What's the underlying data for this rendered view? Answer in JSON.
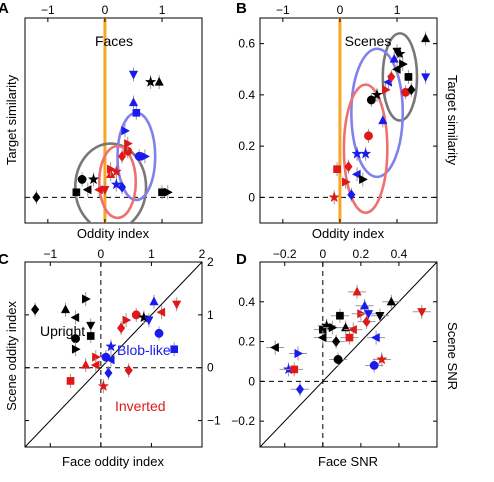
{
  "chart_data": [
    {
      "panel_label": "A",
      "title": "Faces",
      "type": "scatter",
      "xlabel": "Oddity index",
      "ylabel": "Target similarity",
      "x_ticks": [
        "−1",
        "0",
        "1"
      ],
      "xlim": [
        -1.4,
        1.7
      ],
      "ylim": [
        -0.1,
        0.7
      ],
      "vertical_line_x": 0,
      "horizontal_dashed_y": 0,
      "ellipses": [
        {
          "color": "#777777",
          "cx": 0.1,
          "cy": 0.04,
          "rx": 0.62,
          "ry": 0.17
        },
        {
          "color": "#8080ee",
          "cx": 0.55,
          "cy": 0.16,
          "rx": 0.33,
          "ry": 0.17
        },
        {
          "color": "#ee7070",
          "cx": 0.22,
          "cy": 0.06,
          "rx": 0.32,
          "ry": 0.14
        }
      ],
      "points": [
        {
          "x": -1.2,
          "y": 0.0,
          "m": "diamond",
          "c": "black"
        },
        {
          "x": -0.5,
          "y": 0.02,
          "m": "square",
          "c": "black"
        },
        {
          "x": -0.4,
          "y": 0.07,
          "m": "circle",
          "c": "black"
        },
        {
          "x": -0.3,
          "y": 0.03,
          "m": "left",
          "c": "black"
        },
        {
          "x": -0.2,
          "y": 0.07,
          "m": "star",
          "c": "black"
        },
        {
          "x": -0.1,
          "y": 0.03,
          "m": "left",
          "c": "red"
        },
        {
          "x": 0.0,
          "y": 0.03,
          "m": "down",
          "c": "red"
        },
        {
          "x": 0.1,
          "y": 0.09,
          "m": "up",
          "c": "red"
        },
        {
          "x": 0.2,
          "y": 0.05,
          "m": "star",
          "c": "blue"
        },
        {
          "x": 0.3,
          "y": 0.04,
          "m": "diamond",
          "c": "blue"
        },
        {
          "x": 0.1,
          "y": 0.11,
          "m": "right",
          "c": "red"
        },
        {
          "x": 0.2,
          "y": 0.1,
          "m": "star",
          "c": "red"
        },
        {
          "x": 0.4,
          "y": 0.18,
          "m": "circle",
          "c": "red"
        },
        {
          "x": 0.3,
          "y": 0.16,
          "m": "diamond",
          "c": "red"
        },
        {
          "x": 0.6,
          "y": 0.16,
          "m": "circle",
          "c": "blue"
        },
        {
          "x": 0.4,
          "y": 0.21,
          "m": "right",
          "c": "red"
        },
        {
          "x": 0.7,
          "y": 0.16,
          "m": "right",
          "c": "blue"
        },
        {
          "x": 0.35,
          "y": 0.26,
          "m": "right",
          "c": "blue"
        },
        {
          "x": 0.55,
          "y": 0.33,
          "m": "square",
          "c": "blue"
        },
        {
          "x": 0.5,
          "y": 0.37,
          "m": "up",
          "c": "blue"
        },
        {
          "x": 0.5,
          "y": 0.48,
          "m": "down",
          "c": "blue"
        },
        {
          "x": 0.8,
          "y": 0.45,
          "m": "star",
          "c": "black"
        },
        {
          "x": 0.95,
          "y": 0.45,
          "m": "up",
          "c": "black"
        },
        {
          "x": 1.0,
          "y": 0.02,
          "m": "square",
          "c": "black"
        },
        {
          "x": 1.1,
          "y": 0.02,
          "m": "right",
          "c": "black"
        }
      ]
    },
    {
      "panel_label": "B",
      "title": "Scenes",
      "type": "scatter",
      "xlabel": "Oddity index",
      "ylabel": "Target similarity",
      "x_ticks": [
        "−1",
        "0",
        "1"
      ],
      "y_ticks": [
        "0",
        "0.2",
        "0.4",
        "0.6"
      ],
      "xlim": [
        -1.4,
        1.7
      ],
      "ylim": [
        -0.1,
        0.7
      ],
      "vertical_line_x": 0,
      "horizontal_dashed_y": 0,
      "ellipses": [
        {
          "color": "#777777",
          "cx": 1.05,
          "cy": 0.47,
          "rx": 0.3,
          "ry": 0.17
        },
        {
          "color": "#8080ee",
          "cx": 0.65,
          "cy": 0.33,
          "rx": 0.45,
          "ry": 0.25
        },
        {
          "color": "#ee7070",
          "cx": 0.45,
          "cy": 0.19,
          "rx": 0.38,
          "ry": 0.25
        }
      ],
      "points": [
        {
          "x": -0.1,
          "y": 0.0,
          "m": "star",
          "c": "red"
        },
        {
          "x": -0.05,
          "y": 0.11,
          "m": "square",
          "c": "red"
        },
        {
          "x": 0.1,
          "y": 0.06,
          "m": "right",
          "c": "red"
        },
        {
          "x": 0.15,
          "y": 0.12,
          "m": "diamond",
          "c": "red"
        },
        {
          "x": 0.2,
          "y": 0.01,
          "m": "diamond",
          "c": "blue"
        },
        {
          "x": 0.3,
          "y": 0.09,
          "m": "left",
          "c": "blue"
        },
        {
          "x": 0.3,
          "y": 0.17,
          "m": "star",
          "c": "blue"
        },
        {
          "x": 0.45,
          "y": 0.17,
          "m": "star",
          "c": "blue"
        },
        {
          "x": 0.4,
          "y": 0.07,
          "m": "right",
          "c": "black"
        },
        {
          "x": 0.5,
          "y": 0.24,
          "m": "circle",
          "c": "red"
        },
        {
          "x": 0.55,
          "y": 0.38,
          "m": "circle",
          "c": "black"
        },
        {
          "x": 0.65,
          "y": 0.4,
          "m": "star",
          "c": "black"
        },
        {
          "x": 0.75,
          "y": 0.3,
          "m": "up",
          "c": "blue"
        },
        {
          "x": 0.8,
          "y": 0.42,
          "m": "right",
          "c": "red"
        },
        {
          "x": 0.85,
          "y": 0.45,
          "m": "left",
          "c": "blue"
        },
        {
          "x": 0.9,
          "y": 0.47,
          "m": "diamond",
          "c": "red"
        },
        {
          "x": 0.95,
          "y": 0.54,
          "m": "up",
          "c": "blue"
        },
        {
          "x": 1.0,
          "y": 0.5,
          "m": "left",
          "c": "black"
        },
        {
          "x": 1.05,
          "y": 0.56,
          "m": "star",
          "c": "black"
        },
        {
          "x": 1.1,
          "y": 0.52,
          "m": "right",
          "c": "black"
        },
        {
          "x": 1.0,
          "y": 0.57,
          "m": "down",
          "c": "black"
        },
        {
          "x": 1.15,
          "y": 0.41,
          "m": "circle",
          "c": "red"
        },
        {
          "x": 1.2,
          "y": 0.47,
          "m": "square",
          "c": "black"
        },
        {
          "x": 1.25,
          "y": 0.42,
          "m": "diamond",
          "c": "black"
        },
        {
          "x": 1.5,
          "y": 0.62,
          "m": "up",
          "c": "black"
        },
        {
          "x": 1.5,
          "y": 0.47,
          "m": "down",
          "c": "blue"
        }
      ]
    },
    {
      "panel_label": "C",
      "type": "scatter",
      "xlabel": "Face oddity index",
      "ylabel": "Scene oddity index",
      "x_ticks": [
        "−1",
        "0",
        "1",
        "2"
      ],
      "y_ticks": [
        "−1",
        "0",
        "1",
        "2"
      ],
      "xlim": [
        -1.5,
        2.0
      ],
      "ylim": [
        -1.5,
        2.0
      ],
      "diagonal": true,
      "horizontal_dashed_y": 0,
      "vertical_dashed_x": 0,
      "group_labels": [
        {
          "text": "Upright",
          "color": "#000000"
        },
        {
          "text": "Blob-like",
          "color": "#1a1aee"
        },
        {
          "text": "Inverted",
          "color": "#e01818"
        }
      ],
      "points": [
        {
          "x": -1.3,
          "y": 1.1,
          "m": "diamond",
          "c": "black"
        },
        {
          "x": -0.7,
          "y": 1.1,
          "m": "up",
          "c": "black"
        },
        {
          "x": -0.5,
          "y": 0.95,
          "m": "left",
          "c": "black"
        },
        {
          "x": -0.3,
          "y": 1.3,
          "m": "right",
          "c": "black"
        },
        {
          "x": -0.2,
          "y": 0.8,
          "m": "down",
          "c": "black"
        },
        {
          "x": -0.2,
          "y": 0.6,
          "m": "square",
          "c": "black"
        },
        {
          "x": -0.5,
          "y": 0.55,
          "m": "circle",
          "c": "black"
        },
        {
          "x": -0.5,
          "y": 0.35,
          "m": "right",
          "c": "black"
        },
        {
          "x": -0.6,
          "y": -0.25,
          "m": "square",
          "c": "red"
        },
        {
          "x": -0.3,
          "y": 0.05,
          "m": "up",
          "c": "red"
        },
        {
          "x": -0.1,
          "y": 0.2,
          "m": "right",
          "c": "red"
        },
        {
          "x": -0.1,
          "y": 0.05,
          "m": "left",
          "c": "red"
        },
        {
          "x": 0.05,
          "y": -0.35,
          "m": "star",
          "c": "red"
        },
        {
          "x": 0.15,
          "y": -0.1,
          "m": "diamond",
          "c": "blue"
        },
        {
          "x": 0.2,
          "y": 0.4,
          "m": "star",
          "c": "blue"
        },
        {
          "x": 0.1,
          "y": 0.2,
          "m": "circle",
          "c": "blue"
        },
        {
          "x": 0.2,
          "y": 0.15,
          "m": "left",
          "c": "blue"
        },
        {
          "x": 0.4,
          "y": 0.75,
          "m": "diamond",
          "c": "red"
        },
        {
          "x": 0.5,
          "y": 0.9,
          "m": "right",
          "c": "red"
        },
        {
          "x": 0.7,
          "y": 1.0,
          "m": "circle",
          "c": "red"
        },
        {
          "x": 0.85,
          "y": 0.95,
          "m": "star",
          "c": "black"
        },
        {
          "x": 0.95,
          "y": 0.9,
          "m": "down",
          "c": "blue"
        },
        {
          "x": 1.05,
          "y": 1.25,
          "m": "up",
          "c": "blue"
        },
        {
          "x": 1.2,
          "y": 1.05,
          "m": "left",
          "c": "red"
        },
        {
          "x": 1.15,
          "y": 0.65,
          "m": "circle",
          "c": "blue"
        },
        {
          "x": 1.45,
          "y": 0.35,
          "m": "square",
          "c": "blue"
        },
        {
          "x": 1.5,
          "y": 1.2,
          "m": "down",
          "c": "red"
        },
        {
          "x": 0.55,
          "y": -0.05,
          "m": "diamond",
          "c": "red"
        }
      ]
    },
    {
      "panel_label": "D",
      "type": "scatter",
      "xlabel": "Face SNR",
      "ylabel": "Scene SNR",
      "x_ticks": [
        "−0.2",
        "0",
        "0.2",
        "0.4"
      ],
      "y_ticks": [
        "−0.2",
        "0",
        "0.2",
        "0.4"
      ],
      "xlim": [
        -0.33,
        0.6
      ],
      "ylim": [
        -0.33,
        0.6
      ],
      "diagonal": true,
      "horizontal_dashed_y": 0,
      "vertical_dashed_x": 0,
      "points": [
        {
          "x": -0.25,
          "y": 0.17,
          "m": "left",
          "c": "black"
        },
        {
          "x": -0.18,
          "y": 0.06,
          "m": "star",
          "c": "blue"
        },
        {
          "x": -0.15,
          "y": 0.06,
          "m": "square",
          "c": "red"
        },
        {
          "x": -0.13,
          "y": 0.14,
          "m": "right",
          "c": "blue"
        },
        {
          "x": -0.12,
          "y": -0.04,
          "m": "diamond",
          "c": "blue"
        },
        {
          "x": 0.0,
          "y": 0.26,
          "m": "square",
          "c": "black"
        },
        {
          "x": 0.0,
          "y": 0.22,
          "m": "left",
          "c": "black"
        },
        {
          "x": 0.02,
          "y": 0.28,
          "m": "star",
          "c": "black"
        },
        {
          "x": 0.05,
          "y": 0.27,
          "m": "right",
          "c": "black"
        },
        {
          "x": 0.08,
          "y": 0.11,
          "m": "circle",
          "c": "black"
        },
        {
          "x": 0.07,
          "y": 0.2,
          "m": "diamond",
          "c": "black"
        },
        {
          "x": 0.09,
          "y": 0.33,
          "m": "square",
          "c": "black"
        },
        {
          "x": 0.12,
          "y": 0.27,
          "m": "up",
          "c": "black"
        },
        {
          "x": 0.14,
          "y": 0.22,
          "m": "square",
          "c": "red"
        },
        {
          "x": 0.16,
          "y": 0.26,
          "m": "left",
          "c": "red"
        },
        {
          "x": 0.18,
          "y": 0.45,
          "m": "up",
          "c": "red"
        },
        {
          "x": 0.2,
          "y": 0.34,
          "m": "right",
          "c": "red"
        },
        {
          "x": 0.22,
          "y": 0.38,
          "m": "up",
          "c": "blue"
        },
        {
          "x": 0.23,
          "y": 0.3,
          "m": "diamond",
          "c": "red"
        },
        {
          "x": 0.24,
          "y": 0.34,
          "m": "down",
          "c": "blue"
        },
        {
          "x": 0.27,
          "y": 0.08,
          "m": "circle",
          "c": "blue"
        },
        {
          "x": 0.28,
          "y": 0.22,
          "m": "left",
          "c": "blue"
        },
        {
          "x": 0.3,
          "y": 0.33,
          "m": "down",
          "c": "black"
        },
        {
          "x": 0.31,
          "y": 0.11,
          "m": "star",
          "c": "red"
        },
        {
          "x": 0.36,
          "y": 0.4,
          "m": "up",
          "c": "black"
        },
        {
          "x": 0.52,
          "y": 0.35,
          "m": "down",
          "c": "red"
        }
      ]
    }
  ]
}
